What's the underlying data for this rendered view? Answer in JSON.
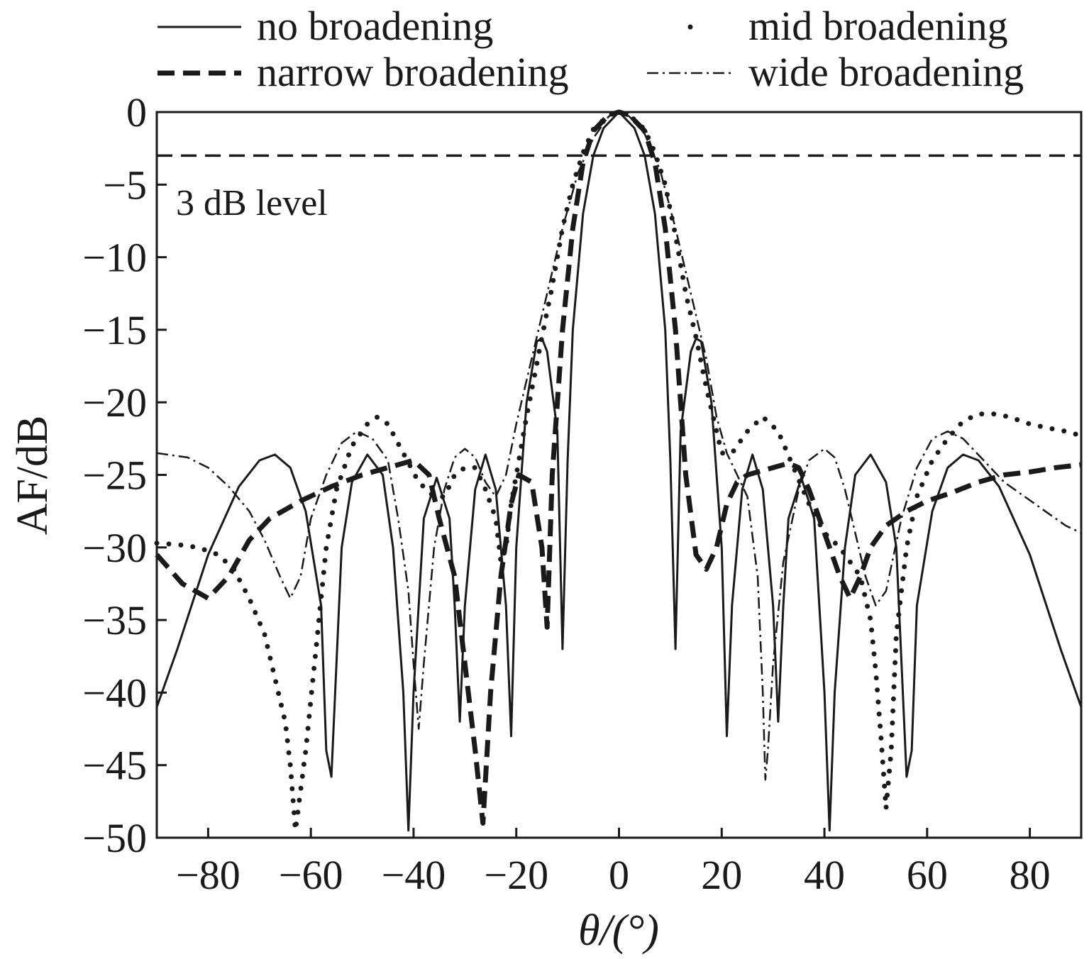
{
  "chart_data": {
    "type": "line",
    "xlabel": "θ/(°)",
    "ylabel": "AF/dB",
    "xlim": [
      -90,
      90
    ],
    "ylim": [
      -50,
      0
    ],
    "xticks": [
      -80,
      -60,
      -40,
      -20,
      0,
      20,
      40,
      60,
      80
    ],
    "yticks": [
      0,
      -5,
      -10,
      -15,
      -20,
      -25,
      -30,
      -35,
      -40,
      -45,
      -50
    ],
    "grid": false,
    "legend_position": "top, outside plot, 2 columns",
    "reference_line": {
      "y": -3,
      "label": "3 dB level",
      "style": "dashed"
    },
    "series": [
      {
        "name": "no broadening",
        "style": "solid",
        "points": [
          [
            -90,
            -41
          ],
          [
            -86,
            -37
          ],
          [
            -80,
            -30.5
          ],
          [
            -74,
            -25.8
          ],
          [
            -70,
            -24
          ],
          [
            -67,
            -23.6
          ],
          [
            -64,
            -24.5
          ],
          [
            -61,
            -27.5
          ],
          [
            -58,
            -34
          ],
          [
            -57,
            -44
          ],
          [
            -56,
            -45.8
          ],
          [
            -54,
            -30
          ],
          [
            -52,
            -25.5
          ],
          [
            -49,
            -23.6
          ],
          [
            -46,
            -25
          ],
          [
            -44,
            -30
          ],
          [
            -42,
            -40
          ],
          [
            -41,
            -49.5
          ],
          [
            -40,
            -40
          ],
          [
            -38,
            -28
          ],
          [
            -35.5,
            -25.2
          ],
          [
            -33,
            -28
          ],
          [
            -32,
            -34
          ],
          [
            -31,
            -42
          ],
          [
            -30,
            -34
          ],
          [
            -28,
            -26
          ],
          [
            -26,
            -23.6
          ],
          [
            -24,
            -26
          ],
          [
            -22,
            -34
          ],
          [
            -21,
            -43
          ],
          [
            -20,
            -30
          ],
          [
            -18,
            -20
          ],
          [
            -16,
            -15.8
          ],
          [
            -15,
            -15.6
          ],
          [
            -14,
            -16.5
          ],
          [
            -12,
            -22
          ],
          [
            -11,
            -37
          ],
          [
            -10,
            -24
          ],
          [
            -9,
            -15
          ],
          [
            -7,
            -7
          ],
          [
            -5,
            -3
          ],
          [
            -3,
            -1.1
          ],
          [
            0,
            0
          ],
          [
            3,
            -1.1
          ],
          [
            5,
            -3
          ],
          [
            7,
            -7
          ],
          [
            9,
            -15
          ],
          [
            10,
            -24
          ],
          [
            11,
            -37
          ],
          [
            12,
            -22
          ],
          [
            14,
            -16.5
          ],
          [
            15,
            -15.6
          ],
          [
            16,
            -15.8
          ],
          [
            18,
            -20
          ],
          [
            20,
            -30
          ],
          [
            21,
            -43
          ],
          [
            22,
            -34
          ],
          [
            24,
            -26
          ],
          [
            26,
            -23.6
          ],
          [
            28,
            -26
          ],
          [
            30,
            -34
          ],
          [
            31,
            -42
          ],
          [
            32,
            -34
          ],
          [
            33,
            -28
          ],
          [
            35.5,
            -25.2
          ],
          [
            38,
            -28
          ],
          [
            40,
            -40
          ],
          [
            41,
            -49.5
          ],
          [
            42,
            -40
          ],
          [
            44,
            -30
          ],
          [
            46,
            -25
          ],
          [
            49,
            -23.6
          ],
          [
            52,
            -25.5
          ],
          [
            54,
            -30
          ],
          [
            56,
            -45.8
          ],
          [
            57,
            -44
          ],
          [
            58,
            -34
          ],
          [
            61,
            -27.5
          ],
          [
            64,
            -24.5
          ],
          [
            67,
            -23.6
          ],
          [
            70,
            -24
          ],
          [
            74,
            -25.8
          ],
          [
            80,
            -30.5
          ],
          [
            86,
            -37
          ],
          [
            90,
            -41
          ]
        ]
      },
      {
        "name": "narrow broadening",
        "style": "thick-dashed",
        "points": [
          [
            -90,
            -30.5
          ],
          [
            -85,
            -32.5
          ],
          [
            -80,
            -33.5
          ],
          [
            -76,
            -32
          ],
          [
            -72,
            -29.5
          ],
          [
            -68,
            -28
          ],
          [
            -62,
            -26.8
          ],
          [
            -56,
            -25.8
          ],
          [
            -50,
            -25
          ],
          [
            -45,
            -24.5
          ],
          [
            -40,
            -24
          ],
          [
            -37,
            -25
          ],
          [
            -35,
            -28
          ],
          [
            -32,
            -32
          ],
          [
            -30,
            -38
          ],
          [
            -28,
            -44
          ],
          [
            -26.5,
            -49
          ],
          [
            -25,
            -40
          ],
          [
            -23,
            -32
          ],
          [
            -21,
            -27
          ],
          [
            -19.5,
            -25
          ],
          [
            -17,
            -25.5
          ],
          [
            -15,
            -30
          ],
          [
            -14,
            -35.5
          ],
          [
            -13,
            -25
          ],
          [
            -11,
            -15
          ],
          [
            -9,
            -8
          ],
          [
            -7,
            -3.5
          ],
          [
            -5,
            -1.3
          ],
          [
            -2,
            -0.2
          ],
          [
            0,
            0
          ],
          [
            2,
            -0.2
          ],
          [
            5,
            -1.3
          ],
          [
            7,
            -3.5
          ],
          [
            9,
            -8
          ],
          [
            11,
            -15
          ],
          [
            13,
            -25
          ],
          [
            15,
            -30.5
          ],
          [
            17,
            -31.5
          ],
          [
            19,
            -30
          ],
          [
            21,
            -27
          ],
          [
            23,
            -25.5
          ],
          [
            25,
            -25
          ],
          [
            27,
            -24.8
          ],
          [
            30,
            -24.5
          ],
          [
            33,
            -24.2
          ],
          [
            35,
            -24.5
          ],
          [
            37,
            -26
          ],
          [
            39,
            -28
          ],
          [
            41,
            -30
          ],
          [
            43,
            -32
          ],
          [
            45,
            -33.5
          ],
          [
            47,
            -32
          ],
          [
            49,
            -30
          ],
          [
            52,
            -28.5
          ],
          [
            56,
            -27.5
          ],
          [
            60,
            -26.8
          ],
          [
            65,
            -26.2
          ],
          [
            70,
            -25.5
          ],
          [
            75,
            -25
          ],
          [
            80,
            -24.8
          ],
          [
            85,
            -24.5
          ],
          [
            90,
            -24.3
          ]
        ]
      },
      {
        "name": "mid broadening",
        "style": "dotted",
        "points": [
          [
            -90,
            -29.7
          ],
          [
            -86,
            -29.8
          ],
          [
            -82,
            -30
          ],
          [
            -78,
            -30.5
          ],
          [
            -75,
            -31.5
          ],
          [
            -72,
            -33.5
          ],
          [
            -69,
            -36
          ],
          [
            -67,
            -39
          ],
          [
            -65,
            -42
          ],
          [
            -64,
            -45
          ],
          [
            -63,
            -49.5
          ],
          [
            -61,
            -44
          ],
          [
            -59,
            -37
          ],
          [
            -57,
            -30
          ],
          [
            -55,
            -26
          ],
          [
            -52,
            -23
          ],
          [
            -49,
            -21.5
          ],
          [
            -47,
            -21
          ],
          [
            -45,
            -21.5
          ],
          [
            -42,
            -23.5
          ],
          [
            -39,
            -25.5
          ],
          [
            -36,
            -26.5
          ],
          [
            -34,
            -26.5
          ],
          [
            -32,
            -25
          ],
          [
            -30,
            -24.5
          ],
          [
            -28,
            -24.5
          ],
          [
            -26,
            -26
          ],
          [
            -24,
            -28
          ],
          [
            -23,
            -31
          ],
          [
            -22,
            -30
          ],
          [
            -21,
            -27
          ],
          [
            -20,
            -25
          ],
          [
            -18,
            -21
          ],
          [
            -15,
            -15.5
          ],
          [
            -13,
            -12
          ],
          [
            -11,
            -8
          ],
          [
            -9,
            -5
          ],
          [
            -7,
            -2.8
          ],
          [
            -5,
            -1.2
          ],
          [
            -2,
            -0.2
          ],
          [
            0,
            0
          ],
          [
            2,
            -0.2
          ],
          [
            5,
            -1.2
          ],
          [
            7,
            -2.8
          ],
          [
            9,
            -5
          ],
          [
            11,
            -8.5
          ],
          [
            13,
            -12.5
          ],
          [
            15,
            -15.5
          ],
          [
            17,
            -19
          ],
          [
            19,
            -22
          ],
          [
            20,
            -23.5
          ],
          [
            22,
            -23.5
          ],
          [
            25,
            -22
          ],
          [
            28,
            -21
          ],
          [
            31,
            -22
          ],
          [
            34,
            -24.5
          ],
          [
            37,
            -27
          ],
          [
            40,
            -29
          ],
          [
            43,
            -30
          ],
          [
            45,
            -31
          ],
          [
            47,
            -32
          ],
          [
            49,
            -35
          ],
          [
            50,
            -38.5
          ],
          [
            51,
            -43
          ],
          [
            52,
            -48
          ],
          [
            53,
            -44
          ],
          [
            54,
            -36
          ],
          [
            56,
            -30
          ],
          [
            58,
            -26.5
          ],
          [
            61,
            -24
          ],
          [
            64,
            -22.5
          ],
          [
            67,
            -21.3
          ],
          [
            70,
            -20.8
          ],
          [
            73,
            -20.8
          ],
          [
            76,
            -21
          ],
          [
            80,
            -21.5
          ],
          [
            84,
            -21.8
          ],
          [
            87,
            -22
          ],
          [
            90,
            -22.3
          ]
        ]
      },
      {
        "name": "wide broadening",
        "style": "dash-dot",
        "points": [
          [
            -90,
            -23.5
          ],
          [
            -84,
            -23.8
          ],
          [
            -80,
            -24.5
          ],
          [
            -76,
            -25.8
          ],
          [
            -72,
            -27.5
          ],
          [
            -69,
            -29.5
          ],
          [
            -66,
            -32
          ],
          [
            -64,
            -33.5
          ],
          [
            -62,
            -32
          ],
          [
            -60,
            -28
          ],
          [
            -57,
            -25
          ],
          [
            -54,
            -22.8
          ],
          [
            -51,
            -22
          ],
          [
            -48,
            -22.5
          ],
          [
            -45,
            -24
          ],
          [
            -43,
            -28
          ],
          [
            -41,
            -33
          ],
          [
            -40,
            -38
          ],
          [
            -39,
            -42.5
          ],
          [
            -38,
            -38
          ],
          [
            -36,
            -30
          ],
          [
            -34,
            -26
          ],
          [
            -32,
            -23.8
          ],
          [
            -30,
            -23.2
          ],
          [
            -28,
            -23.8
          ],
          [
            -26,
            -25.5
          ],
          [
            -24,
            -26.5
          ],
          [
            -22,
            -25
          ],
          [
            -20,
            -21.5
          ],
          [
            -17,
            -17
          ],
          [
            -14,
            -12.5
          ],
          [
            -11,
            -8
          ],
          [
            -8,
            -4.2
          ],
          [
            -5,
            -1.8
          ],
          [
            -2,
            -0.3
          ],
          [
            0,
            0
          ],
          [
            2,
            -0.3
          ],
          [
            5,
            -1.5
          ],
          [
            8,
            -4
          ],
          [
            11,
            -8
          ],
          [
            14,
            -12.5
          ],
          [
            17,
            -17
          ],
          [
            19,
            -21
          ],
          [
            21,
            -23.5
          ],
          [
            23,
            -25
          ],
          [
            25,
            -26.5
          ],
          [
            27,
            -32
          ],
          [
            28,
            -40
          ],
          [
            28.5,
            -46
          ],
          [
            29,
            -44
          ],
          [
            30,
            -38
          ],
          [
            32,
            -31
          ],
          [
            35,
            -26
          ],
          [
            37,
            -24
          ],
          [
            40,
            -23.2
          ],
          [
            42,
            -23.8
          ],
          [
            44,
            -26
          ],
          [
            46,
            -29
          ],
          [
            48,
            -32
          ],
          [
            50,
            -34
          ],
          [
            52,
            -33
          ],
          [
            55,
            -28
          ],
          [
            58,
            -24.5
          ],
          [
            61,
            -22.5
          ],
          [
            64,
            -22
          ],
          [
            67,
            -22.5
          ],
          [
            71,
            -24
          ],
          [
            75,
            -25.5
          ],
          [
            79,
            -26.5
          ],
          [
            83,
            -27.5
          ],
          [
            87,
            -28.5
          ],
          [
            90,
            -29
          ]
        ]
      }
    ]
  }
}
